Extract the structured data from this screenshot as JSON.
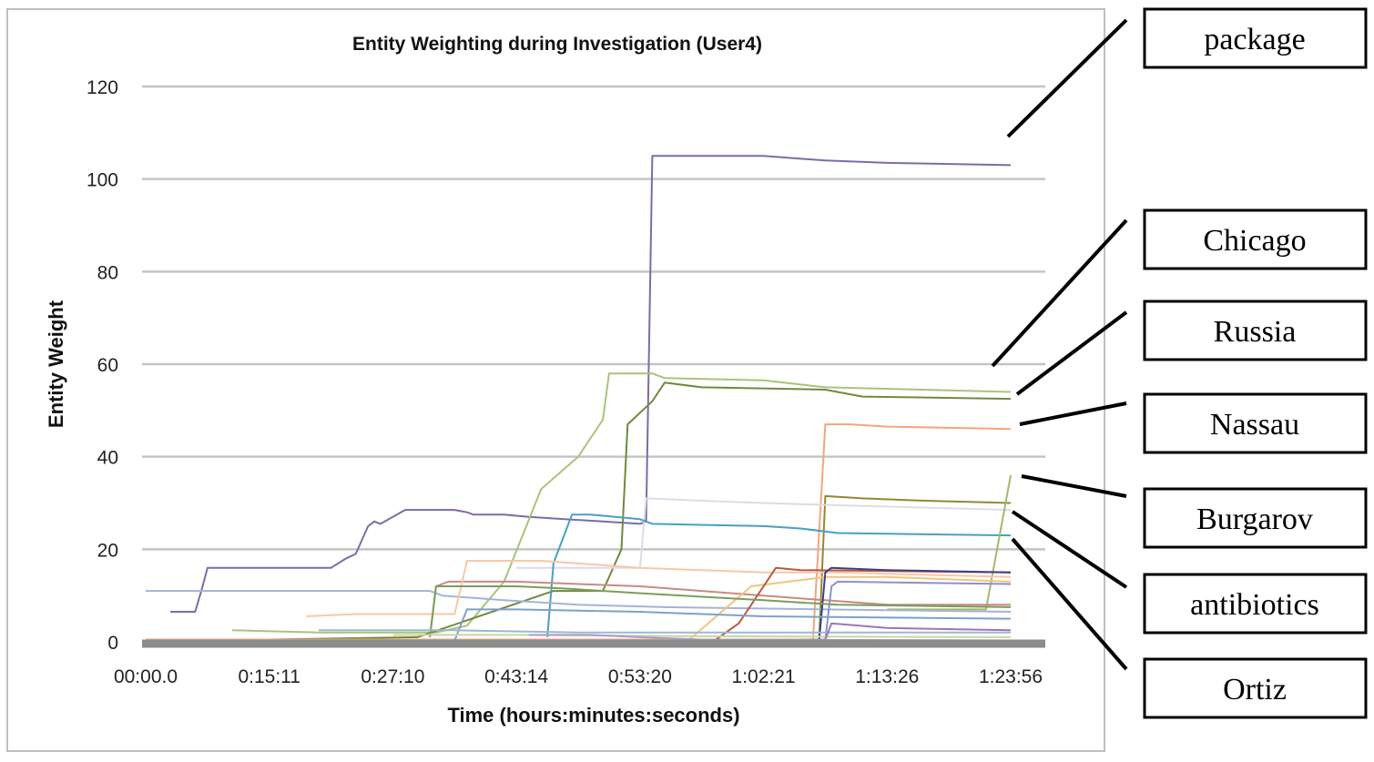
{
  "chart_data": {
    "type": "line",
    "title": "Entity Weighting during Investigation (User4)",
    "xlabel": "Time (hours:minutes:seconds)",
    "ylabel": "Entity Weight",
    "x_tick_labels": [
      "00:00.0",
      "0:15:11",
      "0:27:10",
      "0:43:14",
      "0:53:20",
      "1:02:21",
      "1:13:26",
      "1:23:56"
    ],
    "y_ticks": [
      0,
      20,
      40,
      60,
      80,
      100,
      120
    ],
    "ylim": [
      0,
      120
    ],
    "grid": true,
    "legend": "none",
    "series": [
      {
        "color": "#7f6aa8",
        "points": [
          [
            0.2,
            6.5
          ],
          [
            0.4,
            6.5
          ],
          [
            0.45,
            11
          ],
          [
            0.5,
            16
          ],
          [
            1.0,
            16
          ],
          [
            1.5,
            16
          ],
          [
            1.62,
            18
          ],
          [
            1.7,
            19
          ],
          [
            1.8,
            25
          ],
          [
            1.85,
            26
          ],
          [
            1.9,
            25.5
          ],
          [
            2.0,
            27
          ],
          [
            2.1,
            28.5
          ],
          [
            2.5,
            28.5
          ],
          [
            2.6,
            28
          ],
          [
            2.65,
            27.5
          ],
          [
            2.9,
            27.5
          ],
          [
            3.1,
            27
          ],
          [
            3.7,
            26
          ],
          [
            4.0,
            25.5
          ],
          [
            4.05,
            26
          ],
          [
            4.1,
            105
          ],
          [
            5.0,
            105
          ],
          [
            5.5,
            104
          ],
          [
            6.0,
            103.5
          ],
          [
            7.0,
            103
          ]
        ]
      },
      {
        "color": "#a8c47a",
        "points": [
          [
            0.7,
            2.5
          ],
          [
            1.4,
            2
          ],
          [
            2.2,
            2
          ],
          [
            2.35,
            2
          ],
          [
            2.6,
            3.5
          ],
          [
            2.9,
            13
          ],
          [
            3.2,
            33
          ],
          [
            3.5,
            40
          ],
          [
            3.7,
            48
          ],
          [
            3.75,
            58
          ],
          [
            4.1,
            58
          ],
          [
            4.2,
            57
          ],
          [
            5.0,
            56.5
          ],
          [
            5.5,
            55
          ],
          [
            7.0,
            54
          ]
        ]
      },
      {
        "color": "#6f8a3c",
        "points": [
          [
            1.0,
            0.5
          ],
          [
            2.2,
            1
          ],
          [
            3.3,
            11
          ],
          [
            3.6,
            11
          ],
          [
            3.7,
            11
          ],
          [
            3.85,
            20
          ],
          [
            3.9,
            47
          ],
          [
            4.1,
            52
          ],
          [
            4.2,
            56
          ],
          [
            4.5,
            55
          ],
          [
            5.5,
            54.5
          ],
          [
            5.8,
            53
          ],
          [
            7.0,
            52.5
          ]
        ]
      },
      {
        "color": "#f4a57c",
        "points": [
          [
            0.0,
            0.5
          ],
          [
            5.0,
            0.5
          ],
          [
            5.4,
            0.5
          ],
          [
            5.5,
            47
          ],
          [
            5.7,
            47
          ],
          [
            6.0,
            46.5
          ],
          [
            7.0,
            46
          ]
        ]
      },
      {
        "color": "#8f8a36",
        "points": [
          [
            5.0,
            0.3
          ],
          [
            5.45,
            0.5
          ],
          [
            5.5,
            31.5
          ],
          [
            5.8,
            31
          ],
          [
            6.3,
            30.5
          ],
          [
            7.0,
            30
          ]
        ]
      },
      {
        "color": "#dcdce8",
        "points": [
          [
            3.0,
            16
          ],
          [
            3.3,
            16
          ],
          [
            3.65,
            16
          ],
          [
            4.0,
            16
          ],
          [
            4.05,
            31
          ],
          [
            4.5,
            30.5
          ],
          [
            5.0,
            30
          ],
          [
            5.6,
            29.5
          ],
          [
            7.0,
            28.5
          ]
        ]
      },
      {
        "color": "#4a9fc3",
        "points": [
          [
            3.25,
            1
          ],
          [
            3.3,
            17
          ],
          [
            3.45,
            27.5
          ],
          [
            3.6,
            27.5
          ],
          [
            4.0,
            26.5
          ],
          [
            4.1,
            25.5
          ],
          [
            5.0,
            25
          ],
          [
            5.3,
            24.5
          ],
          [
            5.6,
            23.5
          ],
          [
            7.0,
            23
          ]
        ]
      },
      {
        "color": "#a3b96a",
        "points": [
          [
            6.0,
            7
          ],
          [
            6.8,
            7
          ],
          [
            7.0,
            36
          ]
        ]
      },
      {
        "color": "#c98a82",
        "points": [
          [
            2.3,
            1
          ],
          [
            2.35,
            12
          ],
          [
            2.45,
            13
          ],
          [
            3.0,
            13
          ],
          [
            4.0,
            12
          ],
          [
            4.5,
            11
          ],
          [
            5.0,
            10
          ],
          [
            5.5,
            9
          ],
          [
            6.0,
            8
          ],
          [
            7.0,
            8
          ]
        ]
      },
      {
        "color": "#a4b4d6",
        "points": [
          [
            0.0,
            11
          ],
          [
            0.5,
            11
          ],
          [
            1.0,
            11
          ],
          [
            2.3,
            11
          ],
          [
            2.4,
            10
          ],
          [
            2.9,
            9
          ],
          [
            3.5,
            8
          ],
          [
            4.2,
            7.5
          ],
          [
            5.5,
            7
          ],
          [
            7.0,
            6.5
          ]
        ]
      },
      {
        "color": "#f8c7a6",
        "points": [
          [
            1.3,
            5.5
          ],
          [
            1.7,
            6
          ],
          [
            2.5,
            6
          ],
          [
            2.6,
            17.5
          ],
          [
            3.2,
            17.5
          ],
          [
            4.0,
            16
          ],
          [
            5.0,
            15
          ],
          [
            5.6,
            15
          ],
          [
            7.0,
            14
          ]
        ]
      },
      {
        "color": "#f2c47c",
        "points": [
          [
            4.4,
            0.5
          ],
          [
            4.9,
            12
          ],
          [
            5.5,
            14
          ],
          [
            6.0,
            14
          ],
          [
            7.0,
            13
          ]
        ]
      },
      {
        "color": "#b85a3c",
        "points": [
          [
            4.6,
            0.2
          ],
          [
            4.8,
            4
          ],
          [
            5.0,
            12
          ],
          [
            5.1,
            16
          ],
          [
            5.3,
            15.5
          ],
          [
            7.0,
            15
          ]
        ]
      },
      {
        "color": "#3d3f86",
        "points": [
          [
            5.45,
            0.3
          ],
          [
            5.5,
            15
          ],
          [
            5.55,
            16
          ],
          [
            6.0,
            15.5
          ],
          [
            7.0,
            15
          ]
        ]
      },
      {
        "color": "#8e8fd0",
        "points": [
          [
            5.0,
            0.2
          ],
          [
            5.5,
            0.5
          ],
          [
            5.55,
            12
          ],
          [
            5.6,
            13
          ],
          [
            7.0,
            12.5
          ]
        ]
      },
      {
        "color": "#7a9e5a",
        "points": [
          [
            2.3,
            1
          ],
          [
            2.35,
            12
          ],
          [
            3.0,
            12
          ],
          [
            3.4,
            11.5
          ],
          [
            4.0,
            10.5
          ],
          [
            5.0,
            9
          ],
          [
            5.6,
            8
          ],
          [
            7.0,
            7.5
          ]
        ]
      },
      {
        "color": "#7ea1c8",
        "points": [
          [
            2.5,
            0.3
          ],
          [
            2.6,
            7
          ],
          [
            3.0,
            7
          ],
          [
            4.0,
            6.5
          ],
          [
            5.0,
            5.5
          ],
          [
            7.0,
            5
          ]
        ]
      },
      {
        "color": "#9bb8cf",
        "points": [
          [
            1.4,
            2.5
          ],
          [
            2.0,
            2.5
          ],
          [
            2.5,
            2.5
          ],
          [
            3.5,
            2
          ],
          [
            4.0,
            2
          ],
          [
            5.0,
            2
          ],
          [
            7.0,
            2
          ]
        ]
      },
      {
        "color": "#c9d6a0",
        "points": [
          [
            2.0,
            1.5
          ],
          [
            3.0,
            1.5
          ],
          [
            4.5,
            1.2
          ],
          [
            7.0,
            1
          ]
        ]
      },
      {
        "color": "#9a77b3",
        "points": [
          [
            5.0,
            0.3
          ],
          [
            5.5,
            0.5
          ],
          [
            5.55,
            4
          ],
          [
            6.0,
            3
          ],
          [
            7.0,
            2.5
          ]
        ]
      },
      {
        "color": "#a99bd0",
        "points": [
          [
            3.1,
            1.5
          ],
          [
            3.6,
            1.5
          ],
          [
            4.0,
            1
          ],
          [
            4.5,
            0.5
          ],
          [
            7.0,
            0.3
          ]
        ]
      }
    ]
  },
  "callouts": [
    "package",
    "Chicago",
    "Russia",
    "Nassau",
    "Burgarov",
    "antibiotics",
    "Ortiz"
  ]
}
